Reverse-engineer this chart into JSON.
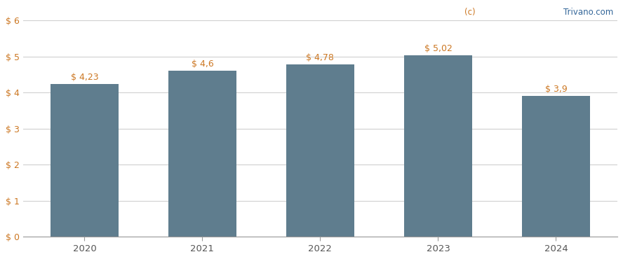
{
  "categories": [
    "2020",
    "2021",
    "2022",
    "2023",
    "2024"
  ],
  "values": [
    4.23,
    4.6,
    4.78,
    5.02,
    3.9
  ],
  "labels": [
    "$ 4,23",
    "$ 4,6",
    "$ 4,78",
    "$ 5,02",
    "$ 3,9"
  ],
  "bar_color": "#5f7d8e",
  "background_color": "#ffffff",
  "yticks": [
    0,
    1,
    2,
    3,
    4,
    5,
    6
  ],
  "ytick_labels": [
    "$ 0",
    "$ 1",
    "$ 2",
    "$ 3",
    "$ 4",
    "$ 5",
    "$ 6"
  ],
  "ylim": [
    0,
    6.4
  ],
  "grid_color": "#d0d0d0",
  "label_color_orange": "#cc7722",
  "label_color_blue": "#336699",
  "axis_text_color": "#555555",
  "watermark_c_color": "#cc7722",
  "watermark_text_color": "#336699"
}
